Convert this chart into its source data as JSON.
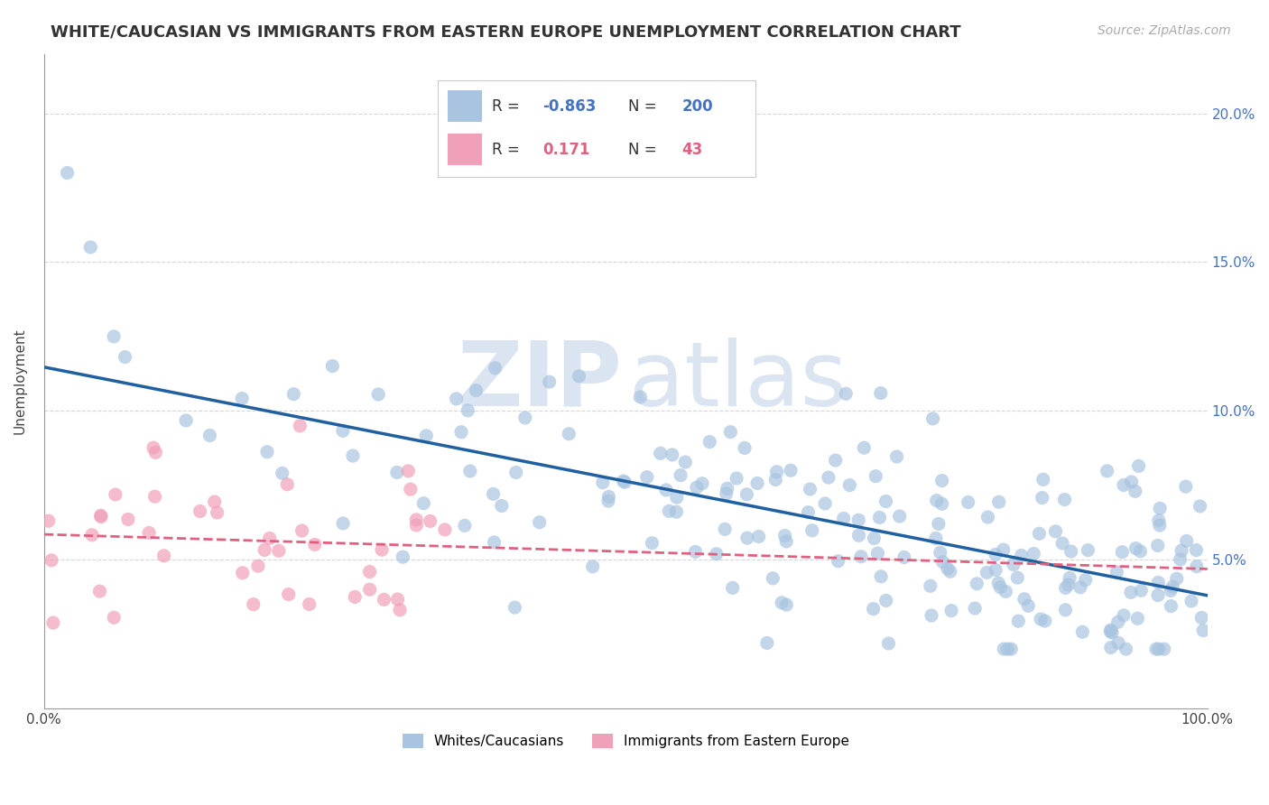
{
  "title": "WHITE/CAUCASIAN VS IMMIGRANTS FROM EASTERN EUROPE UNEMPLOYMENT CORRELATION CHART",
  "source_text": "Source: ZipAtlas.com",
  "ylabel": "Unemployment",
  "watermark_zip": "ZIP",
  "watermark_atlas": "atlas",
  "blue_R": -0.863,
  "blue_N": 200,
  "pink_R": 0.171,
  "pink_N": 43,
  "blue_color": "#a8c4e0",
  "pink_color": "#f0a0b8",
  "blue_line_color": "#2060a0",
  "pink_line_color": "#e06080",
  "background_color": "#ffffff",
  "grid_color": "#cccccc",
  "right_axis_labels": [
    "5.0%",
    "10.0%",
    "15.0%",
    "20.0%"
  ],
  "legend_blue_label": "Whites/Caucasians",
  "legend_pink_label": "Immigrants from Eastern Europe",
  "title_fontsize": 13,
  "axis_label_fontsize": 11,
  "tick_fontsize": 11
}
